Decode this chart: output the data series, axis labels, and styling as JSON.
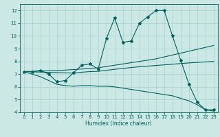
{
  "xlabel": "Humidex (Indice chaleur)",
  "background_color": "#cce8e4",
  "grid_color": "#aad4d0",
  "line_color": "#006060",
  "x_data": [
    0,
    1,
    2,
    3,
    4,
    5,
    6,
    7,
    8,
    9,
    10,
    11,
    12,
    13,
    14,
    15,
    16,
    17,
    18,
    19,
    20,
    21,
    22,
    23
  ],
  "main_line": [
    7.2,
    7.2,
    7.3,
    7.0,
    6.4,
    6.5,
    7.1,
    7.7,
    7.8,
    7.4,
    9.8,
    11.4,
    9.5,
    9.6,
    11.0,
    11.5,
    12.0,
    12.0,
    10.0,
    8.1,
    6.2,
    4.8,
    4.2,
    4.2
  ],
  "trend_up": [
    7.2,
    7.22,
    7.24,
    7.26,
    7.28,
    7.32,
    7.36,
    7.4,
    7.45,
    7.5,
    7.6,
    7.7,
    7.8,
    7.9,
    8.0,
    8.1,
    8.2,
    8.35,
    8.5,
    8.65,
    8.8,
    8.95,
    9.1,
    9.25
  ],
  "trend_mid": [
    7.2,
    7.18,
    7.16,
    7.14,
    7.12,
    7.1,
    7.08,
    7.15,
    7.2,
    7.22,
    7.3,
    7.38,
    7.45,
    7.52,
    7.58,
    7.63,
    7.68,
    7.73,
    7.78,
    7.83,
    7.88,
    7.92,
    7.96,
    8.0
  ],
  "lower_line": [
    7.2,
    7.0,
    6.8,
    6.5,
    6.2,
    6.1,
    6.05,
    6.1,
    6.1,
    6.05,
    6.05,
    6.0,
    5.9,
    5.8,
    5.7,
    5.6,
    5.5,
    5.4,
    5.3,
    5.1,
    4.9,
    4.6,
    4.2,
    4.1
  ],
  "ylim": [
    4,
    12.5
  ],
  "xlim": [
    -0.5,
    23.5
  ],
  "yticks": [
    4,
    5,
    6,
    7,
    8,
    9,
    10,
    11,
    12
  ],
  "xticks": [
    0,
    1,
    2,
    3,
    4,
    5,
    6,
    7,
    8,
    9,
    10,
    11,
    12,
    13,
    14,
    15,
    16,
    17,
    18,
    19,
    20,
    21,
    22,
    23
  ]
}
